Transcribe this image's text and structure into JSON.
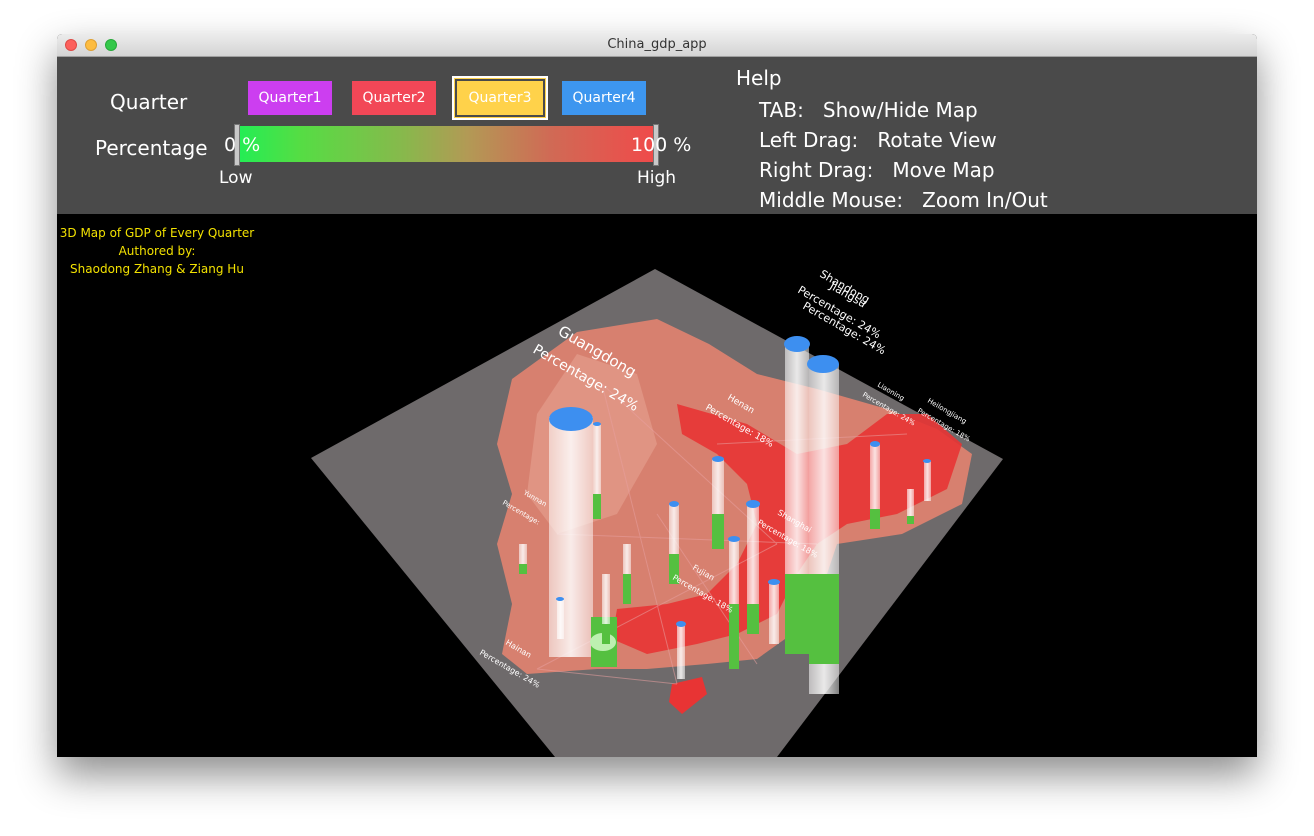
{
  "window": {
    "title": "China_gdp_app"
  },
  "controls": {
    "quarter_label": "Quarter",
    "quarters": [
      {
        "label": "Quarter1",
        "color": "#cc3ef0"
      },
      {
        "label": "Quarter2",
        "color": "#f24757"
      },
      {
        "label": "Quarter3",
        "color": "#ffd24a"
      },
      {
        "label": "Quarter4",
        "color": "#3d96ef"
      }
    ],
    "selected_quarter": "Quarter3",
    "percentage_label": "Percentage",
    "range_min": "0 %",
    "range_max": "100 %",
    "low_label": "Low",
    "high_label": "High",
    "gradient_low_color": "#22ee55",
    "gradient_high_color": "#f04a4a"
  },
  "help": {
    "title": "Help",
    "items": [
      {
        "key": "TAB:",
        "action": "Show/Hide Map"
      },
      {
        "key": "Left Drag:",
        "action": "Rotate View"
      },
      {
        "key": "Right Drag:",
        "action": "Move Map"
      },
      {
        "key": "Middle Mouse:",
        "action": "Zoom In/Out"
      }
    ]
  },
  "credits": {
    "line1": "3D Map of GDP of Every Quarter",
    "line2": "Authored by:",
    "line3": "Shaodong Zhang & Ziang Hu"
  },
  "map": {
    "cap_color": "#3d8ff0",
    "bar_fill_color": "#55c040",
    "high_region_color": "#e83434",
    "labels": [
      {
        "name": "Guangdong",
        "pct": "Percentage: 24%"
      },
      {
        "name": "Shandong",
        "pct": "Percentage: 24%"
      },
      {
        "name": "Jiangsu",
        "pct": "Percentage: 24%"
      },
      {
        "name": "Henan",
        "pct": "Percentage: 18%"
      },
      {
        "name": "Liaoning",
        "pct": "Percentage: 24%"
      },
      {
        "name": "Heilongjiang",
        "pct": "Percentage: 18%"
      },
      {
        "name": "Hainan",
        "pct": "Percentage: 24%"
      },
      {
        "name": "Yunnan",
        "pct": "Percentage:"
      },
      {
        "name": "Shanghai",
        "pct": "Percentage: 18%"
      },
      {
        "name": "Fujian",
        "pct": "Percentage: 18%"
      }
    ]
  }
}
